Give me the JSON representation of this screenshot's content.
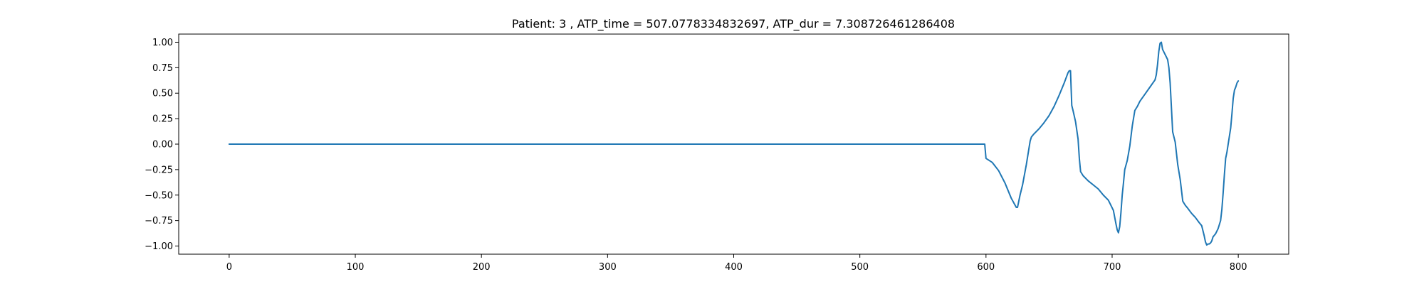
{
  "chart_data": {
    "type": "line",
    "title": "Patient: 3 , ATP_time = 507.0778334832697, ATP_dur = 7.308726461286408",
    "xlabel": "",
    "ylabel": "",
    "xlim": [
      -40,
      840
    ],
    "ylim": [
      -1.08,
      1.08
    ],
    "x_ticks": [
      0,
      100,
      200,
      300,
      400,
      500,
      600,
      700,
      800
    ],
    "y_ticks": [
      1.0,
      0.75,
      0.5,
      0.25,
      0.0,
      -0.25,
      -0.5,
      -0.75,
      -1.0
    ],
    "x_tick_labels": [
      "0",
      "100",
      "200",
      "300",
      "400",
      "500",
      "600",
      "700",
      "800"
    ],
    "y_tick_labels": [
      "1.00",
      "0.75",
      "0.50",
      "0.25",
      "0.00",
      "−0.25",
      "−0.50",
      "−0.75",
      "−1.00"
    ],
    "grid": false,
    "legend": "none",
    "line_color": "#1f77b4",
    "series": [
      {
        "x": [
          0,
          597,
          598,
          599,
          600,
          605,
          610,
          615,
          620,
          624,
          625,
          627,
          629,
          632,
          635,
          636,
          638,
          642,
          646,
          650,
          654,
          658,
          662,
          665,
          666,
          667,
          668,
          669,
          671,
          673,
          674,
          675,
          677,
          681,
          685,
          689,
          693,
          697,
          699,
          701,
          703,
          704,
          705,
          706,
          707,
          708,
          709,
          710,
          712,
          714,
          716,
          718,
          719,
          720,
          722,
          726,
          730,
          734,
          735,
          736,
          737,
          738,
          739,
          740,
          742,
          744,
          745,
          746,
          748,
          750,
          752,
          754,
          756,
          758,
          760,
          763,
          766,
          769,
          771,
          772,
          773,
          774,
          775,
          776,
          777,
          778,
          779,
          780,
          782,
          784,
          786,
          787,
          788,
          789,
          790,
          791,
          792,
          793,
          794,
          795,
          796,
          797,
          798,
          799,
          800
        ],
        "y": [
          0.0,
          0.0,
          0.0,
          0.0,
          -0.14,
          -0.18,
          -0.26,
          -0.38,
          -0.53,
          -0.62,
          -0.62,
          -0.5,
          -0.4,
          -0.2,
          0.03,
          0.07,
          0.1,
          0.15,
          0.21,
          0.28,
          0.37,
          0.48,
          0.6,
          0.7,
          0.72,
          0.72,
          0.38,
          0.33,
          0.22,
          0.05,
          -0.14,
          -0.27,
          -0.31,
          -0.36,
          -0.4,
          -0.44,
          -0.5,
          -0.55,
          -0.6,
          -0.65,
          -0.78,
          -0.84,
          -0.87,
          -0.81,
          -0.67,
          -0.5,
          -0.38,
          -0.25,
          -0.16,
          -0.02,
          0.18,
          0.33,
          0.35,
          0.37,
          0.42,
          0.49,
          0.56,
          0.63,
          0.68,
          0.78,
          0.91,
          0.99,
          1.0,
          0.93,
          0.88,
          0.83,
          0.75,
          0.6,
          0.12,
          0.02,
          -0.2,
          -0.35,
          -0.56,
          -0.6,
          -0.63,
          -0.68,
          -0.72,
          -0.77,
          -0.8,
          -0.85,
          -0.9,
          -0.96,
          -0.99,
          -0.98,
          -0.98,
          -0.97,
          -0.95,
          -0.91,
          -0.88,
          -0.83,
          -0.75,
          -0.64,
          -0.48,
          -0.3,
          -0.14,
          -0.08,
          0.0,
          0.08,
          0.16,
          0.3,
          0.45,
          0.53,
          0.56,
          0.6,
          0.62
        ]
      }
    ]
  }
}
